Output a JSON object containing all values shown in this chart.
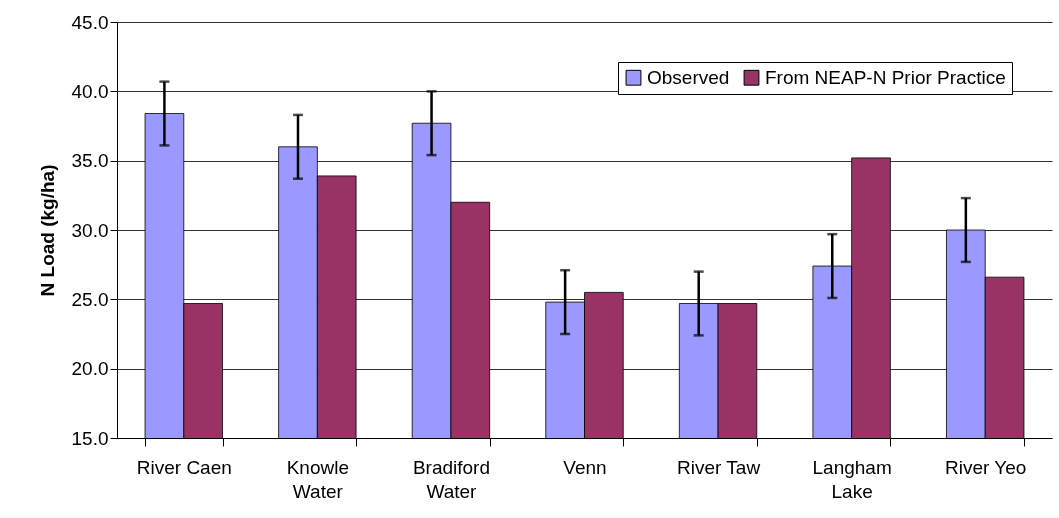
{
  "chart_data": {
    "type": "bar",
    "ylabel": "N Load (kg/ha)",
    "categories": [
      "River Caen",
      "Knowle Water",
      "Bradiford Water",
      "Venn",
      "River Taw",
      "Langham Lake",
      "River Yeo"
    ],
    "series": [
      {
        "name": "Observed",
        "color": "#9999ff",
        "values": [
          38.4,
          36.0,
          37.7,
          24.8,
          24.7,
          27.4,
          30.0
        ],
        "errors": [
          2.3,
          2.3,
          2.3,
          2.3,
          2.3,
          2.3,
          2.3
        ]
      },
      {
        "name": "From NEAP-N Prior Practice",
        "color": "#993366",
        "values": [
          24.7,
          33.9,
          32.0,
          25.5,
          24.7,
          35.2,
          26.6
        ]
      }
    ],
    "ylim": [
      15,
      45
    ],
    "yticks": [
      {
        "value": 15,
        "label": "15.0"
      },
      {
        "value": 20,
        "label": "20.0"
      },
      {
        "value": 25,
        "label": "25.0"
      },
      {
        "value": 30,
        "label": "30.0"
      },
      {
        "value": 35,
        "label": "35.0"
      },
      {
        "value": 40,
        "label": "40.0"
      },
      {
        "value": 45,
        "label": "45.0"
      }
    ],
    "grid": "y",
    "legend": "top right"
  }
}
